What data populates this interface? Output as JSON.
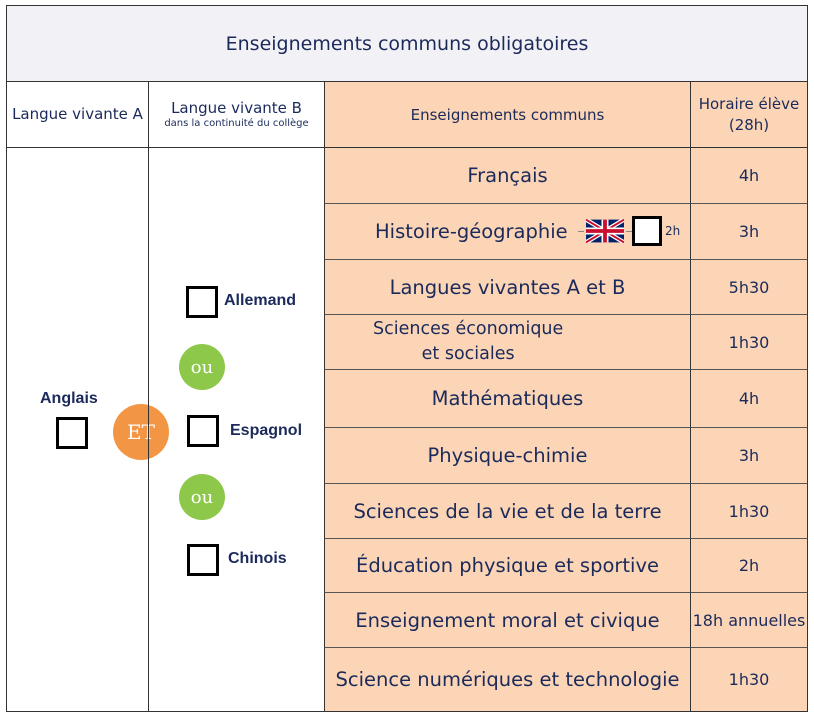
{
  "title": "Enseignements communs obligatoires",
  "headers": {
    "col_a": "Langue vivante A",
    "col_b_main": "Langue vivante B",
    "col_b_sub": "dans la continuité du collège",
    "col_c": "Enseignements communs",
    "col_d": "Horaire élève (28h)"
  },
  "lv_a": {
    "label": "Anglais"
  },
  "connector": "ET",
  "lv_b": {
    "options": [
      "Allemand",
      "Espagnol",
      "Chinois"
    ],
    "separator": "ou"
  },
  "subjects": [
    {
      "name": "Français",
      "hours": "4h"
    },
    {
      "name": "Histoire-géographie",
      "hours": "3h"
    },
    {
      "name": "Langues vivantes A et B",
      "hours": "5h30"
    },
    {
      "name": "Sciences économique\net sociales",
      "hours": "1h30"
    },
    {
      "name": "Mathématiques",
      "hours": "4h"
    },
    {
      "name": "Physique-chimie",
      "hours": "3h"
    },
    {
      "name": "Sciences de la vie et de la terre",
      "hours": "1h30"
    },
    {
      "name": "Éducation physique et sportive",
      "hours": "2h"
    },
    {
      "name": "Enseignement moral et civique",
      "hours": "18h annuelles"
    },
    {
      "name": "Science numériques et technologie",
      "hours": "1h30"
    }
  ],
  "dnl": {
    "hours": "2h",
    "flag": "uk-flag-icon"
  },
  "colors": {
    "peach": "#fbd5b5",
    "green": "#8dc84b",
    "orange": "#f29645",
    "navy": "#1b2a5a"
  }
}
